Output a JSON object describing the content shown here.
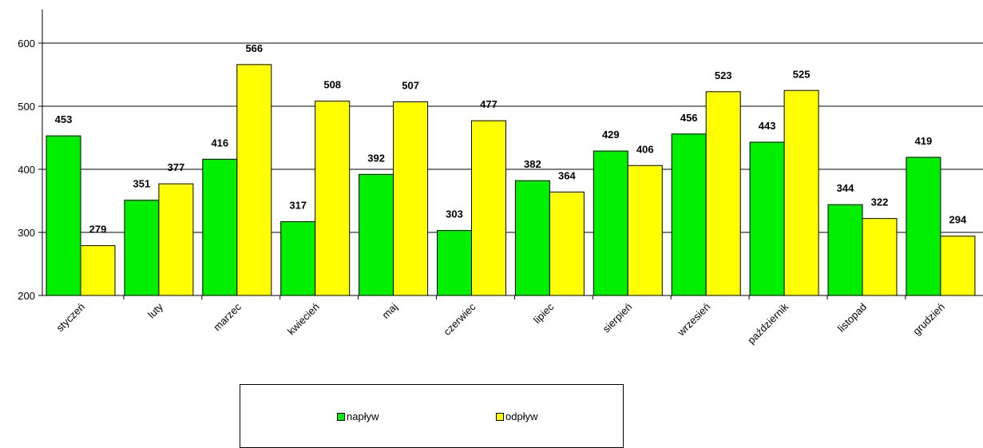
{
  "chart_data": {
    "type": "bar",
    "categories": [
      "styczeń",
      "luty",
      "marzec",
      "kwiecień",
      "maj",
      "czerwiec",
      "lipiec",
      "sierpień",
      "wrzesień",
      "październik",
      "listopad",
      "grudzień"
    ],
    "series": [
      {
        "name": "napływ",
        "color": "#00ee00",
        "values": [
          453,
          351,
          416,
          317,
          392,
          303,
          382,
          429,
          456,
          443,
          344,
          419
        ]
      },
      {
        "name": "odpływ",
        "color": "#ffff00",
        "values": [
          279,
          377,
          566,
          508,
          507,
          477,
          364,
          406,
          523,
          525,
          322,
          294
        ]
      }
    ],
    "yticks": [
      200,
      300,
      400,
      500,
      600
    ],
    "ylim": [
      200,
      640
    ],
    "grid": true,
    "legend_position": "bottom"
  },
  "legend": {
    "items": [
      "napływ",
      "odpływ"
    ]
  }
}
